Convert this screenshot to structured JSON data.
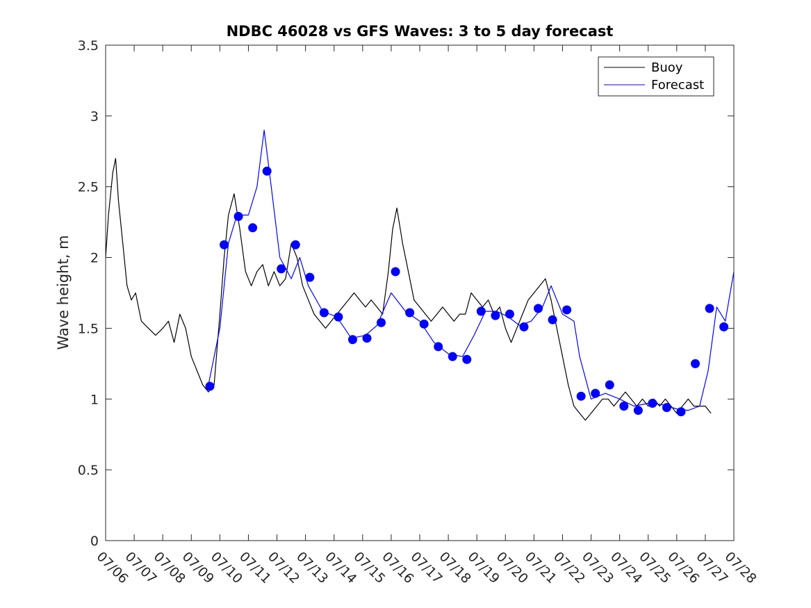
{
  "chart_data": {
    "type": "line",
    "title": "NDBC 46028 vs GFS Waves: 3 to 5 day forecast",
    "xlabel": "",
    "ylabel": "Wave height, m",
    "xlim": [
      "07/06",
      "07/28"
    ],
    "ylim": [
      0,
      3.5
    ],
    "yticks": [
      "0",
      "0.5",
      "1",
      "1.5",
      "2",
      "2.5",
      "3",
      "3.5"
    ],
    "xticks": [
      "07/06",
      "07/07",
      "07/08",
      "07/09",
      "07/10",
      "07/11",
      "07/12",
      "07/13",
      "07/14",
      "07/15",
      "07/16",
      "07/17",
      "07/18",
      "07/19",
      "07/20",
      "07/21",
      "07/22",
      "07/23",
      "07/24",
      "07/25",
      "07/26",
      "07/27",
      "07/28"
    ],
    "grid": false,
    "legend": {
      "position": "top-right",
      "entries": [
        {
          "label": "Buoy",
          "color": "#000000"
        },
        {
          "label": "Forecast",
          "color": "#0000ff"
        }
      ]
    },
    "series": [
      {
        "name": "Buoy",
        "color": "#000000",
        "x": [
          6.0,
          6.1,
          6.25,
          6.35,
          6.45,
          6.6,
          6.75,
          6.9,
          7.05,
          7.25,
          7.5,
          7.75,
          8.0,
          8.2,
          8.4,
          8.6,
          8.8,
          9.0,
          9.2,
          9.4,
          9.6,
          9.8,
          10.0,
          10.15,
          10.3,
          10.5,
          10.7,
          10.9,
          11.1,
          11.3,
          11.5,
          11.7,
          11.9,
          12.1,
          12.3,
          12.5,
          12.7,
          12.9,
          13.1,
          13.3,
          13.5,
          13.7,
          13.9,
          14.1,
          14.3,
          14.5,
          14.7,
          14.9,
          15.1,
          15.3,
          15.5,
          15.7,
          15.9,
          16.05,
          16.2,
          16.4,
          16.6,
          16.8,
          17.0,
          17.2,
          17.4,
          17.6,
          17.8,
          18.0,
          18.2,
          18.4,
          18.6,
          18.8,
          19.0,
          19.2,
          19.4,
          19.6,
          19.8,
          20.0,
          20.2,
          20.4,
          20.6,
          20.8,
          21.0,
          21.2,
          21.4,
          21.6,
          21.8,
          22.0,
          22.2,
          22.4,
          22.6,
          22.8,
          23.0,
          23.2,
          23.4,
          23.6,
          23.8,
          24.0,
          24.2,
          24.4,
          24.6,
          24.8,
          25.0,
          25.2,
          25.4,
          25.6,
          25.8,
          26.0,
          26.2,
          26.4,
          26.6,
          26.8,
          27.0,
          27.2
        ],
        "y": [
          2.0,
          2.3,
          2.6,
          2.7,
          2.4,
          2.1,
          1.8,
          1.7,
          1.75,
          1.55,
          1.5,
          1.45,
          1.5,
          1.55,
          1.4,
          1.6,
          1.5,
          1.3,
          1.2,
          1.1,
          1.05,
          1.1,
          1.6,
          2.0,
          2.3,
          2.45,
          2.2,
          1.9,
          1.8,
          1.9,
          1.95,
          1.8,
          1.9,
          1.8,
          1.85,
          2.1,
          2.0,
          1.8,
          1.7,
          1.6,
          1.55,
          1.5,
          1.55,
          1.6,
          1.65,
          1.7,
          1.75,
          1.7,
          1.65,
          1.7,
          1.65,
          1.6,
          1.9,
          2.2,
          2.35,
          2.1,
          1.9,
          1.7,
          1.65,
          1.6,
          1.55,
          1.6,
          1.65,
          1.6,
          1.55,
          1.6,
          1.6,
          1.75,
          1.7,
          1.65,
          1.7,
          1.6,
          1.65,
          1.5,
          1.4,
          1.5,
          1.6,
          1.7,
          1.75,
          1.8,
          1.85,
          1.7,
          1.5,
          1.3,
          1.1,
          0.95,
          0.9,
          0.85,
          0.9,
          0.95,
          1.0,
          1.0,
          0.95,
          1.0,
          1.05,
          1.0,
          0.95,
          1.0,
          0.95,
          1.0,
          0.95,
          1.0,
          0.95,
          0.9,
          0.95,
          1.0,
          0.95,
          0.95,
          0.95,
          0.9
        ]
      },
      {
        "name": "Forecast",
        "color": "#0000ff",
        "x": [
          9.6,
          10.0,
          10.3,
          10.6,
          11.0,
          11.3,
          11.55,
          11.8,
          12.1,
          12.5,
          12.8,
          13.1,
          13.6,
          14.1,
          14.6,
          15.1,
          15.5,
          16.0,
          16.5,
          17.0,
          17.5,
          18.0,
          18.5,
          18.9,
          19.3,
          19.7,
          20.1,
          20.5,
          20.9,
          21.3,
          21.6,
          22.0,
          22.4,
          22.6,
          23.0,
          23.5,
          24.0,
          24.5,
          25.0,
          25.5,
          26.0,
          26.4,
          26.8,
          27.1,
          27.4,
          27.7,
          28.0
        ],
        "y": [
          1.1,
          1.5,
          2.1,
          2.3,
          2.3,
          2.5,
          2.9,
          2.5,
          2.0,
          1.85,
          2.0,
          1.8,
          1.62,
          1.58,
          1.43,
          1.45,
          1.52,
          1.75,
          1.62,
          1.55,
          1.4,
          1.32,
          1.3,
          1.45,
          1.62,
          1.62,
          1.58,
          1.52,
          1.55,
          1.65,
          1.8,
          1.6,
          1.55,
          1.3,
          1.0,
          1.04,
          1.0,
          0.95,
          0.97,
          0.96,
          0.93,
          0.92,
          0.95,
          1.2,
          1.65,
          1.55,
          1.9
        ]
      }
    ],
    "markers": {
      "name": "Forecast",
      "color": "#0000ff",
      "x": [
        9.65,
        10.15,
        10.65,
        11.15,
        11.65,
        12.15,
        12.65,
        13.15,
        13.65,
        14.15,
        14.65,
        15.15,
        15.65,
        16.15,
        16.65,
        17.15,
        17.65,
        18.15,
        18.65,
        19.15,
        19.65,
        20.15,
        20.65,
        21.15,
        21.65,
        22.15,
        22.65,
        23.15,
        23.65,
        24.15,
        24.65,
        25.15,
        25.65,
        26.15,
        26.65,
        27.15,
        27.65
      ],
      "y": [
        1.09,
        2.09,
        2.29,
        2.21,
        2.61,
        1.92,
        2.09,
        1.86,
        1.61,
        1.58,
        1.42,
        1.43,
        1.54,
        1.9,
        1.61,
        1.53,
        1.37,
        1.3,
        1.28,
        1.62,
        1.59,
        1.6,
        1.51,
        1.64,
        1.56,
        1.63,
        1.02,
        1.04,
        1.1,
        0.95,
        0.92,
        0.97,
        0.94,
        0.91,
        1.25,
        1.64,
        1.51
      ]
    }
  }
}
